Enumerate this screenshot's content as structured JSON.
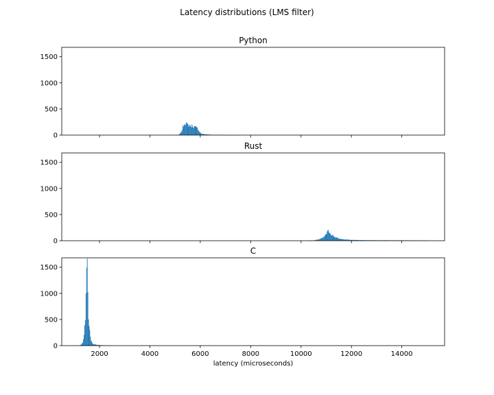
{
  "figure": {
    "title": "Latency distributions (LMS filter)",
    "xlabel": "latency (microseconds)",
    "bar_color": "#1f77b4"
  },
  "chart_data": [
    {
      "type": "bar",
      "title": "Python",
      "xlim": [
        500,
        15700
      ],
      "ylim": [
        0,
        1680
      ],
      "yticks": [
        0,
        500,
        1000,
        1500
      ],
      "xticks": [
        2000,
        4000,
        6000,
        8000,
        10000,
        12000,
        14000
      ],
      "show_xtick_labels": false,
      "bin_width": 25,
      "profile": [
        [
          5000,
          0
        ],
        [
          5150,
          5
        ],
        [
          5250,
          60
        ],
        [
          5300,
          140
        ],
        [
          5350,
          210
        ],
        [
          5400,
          235
        ],
        [
          5450,
          215
        ],
        [
          5500,
          195
        ],
        [
          5600,
          180
        ],
        [
          5700,
          170
        ],
        [
          5800,
          155
        ],
        [
          5900,
          125
        ],
        [
          5975,
          60
        ],
        [
          6050,
          25
        ],
        [
          6200,
          15
        ],
        [
          6400,
          8
        ],
        [
          6600,
          5
        ],
        [
          7000,
          2
        ],
        [
          7500,
          0
        ]
      ]
    },
    {
      "type": "bar",
      "title": "Rust",
      "xlim": [
        500,
        15700
      ],
      "ylim": [
        0,
        1680
      ],
      "yticks": [
        0,
        500,
        1000,
        1500
      ],
      "xticks": [
        2000,
        4000,
        6000,
        8000,
        10000,
        12000,
        14000
      ],
      "show_xtick_labels": false,
      "bin_width": 25,
      "profile": [
        [
          10300,
          0
        ],
        [
          10500,
          5
        ],
        [
          10700,
          25
        ],
        [
          10850,
          50
        ],
        [
          10950,
          90
        ],
        [
          11050,
          170
        ],
        [
          11100,
          185
        ],
        [
          11200,
          120
        ],
        [
          11350,
          70
        ],
        [
          11500,
          40
        ],
        [
          11700,
          25
        ],
        [
          12000,
          15
        ],
        [
          12500,
          10
        ],
        [
          13500,
          8
        ],
        [
          14500,
          6
        ],
        [
          15000,
          4
        ],
        [
          15050,
          0
        ]
      ]
    },
    {
      "type": "bar",
      "title": "C",
      "xlim": [
        500,
        15700
      ],
      "ylim": [
        0,
        1680
      ],
      "yticks": [
        0,
        500,
        1000,
        1500
      ],
      "xticks": [
        2000,
        4000,
        6000,
        8000,
        10000,
        12000,
        14000
      ],
      "show_xtick_labels": true,
      "bin_width": 25,
      "profile": [
        [
          1150,
          0
        ],
        [
          1250,
          10
        ],
        [
          1350,
          60
        ],
        [
          1400,
          250
        ],
        [
          1440,
          600
        ],
        [
          1460,
          1100
        ],
        [
          1480,
          1450
        ],
        [
          1500,
          1600
        ],
        [
          1520,
          1350
        ],
        [
          1550,
          700
        ],
        [
          1600,
          330
        ],
        [
          1650,
          100
        ],
        [
          1750,
          30
        ],
        [
          1900,
          15
        ],
        [
          2100,
          8
        ],
        [
          2300,
          3
        ],
        [
          2500,
          0
        ]
      ]
    }
  ]
}
